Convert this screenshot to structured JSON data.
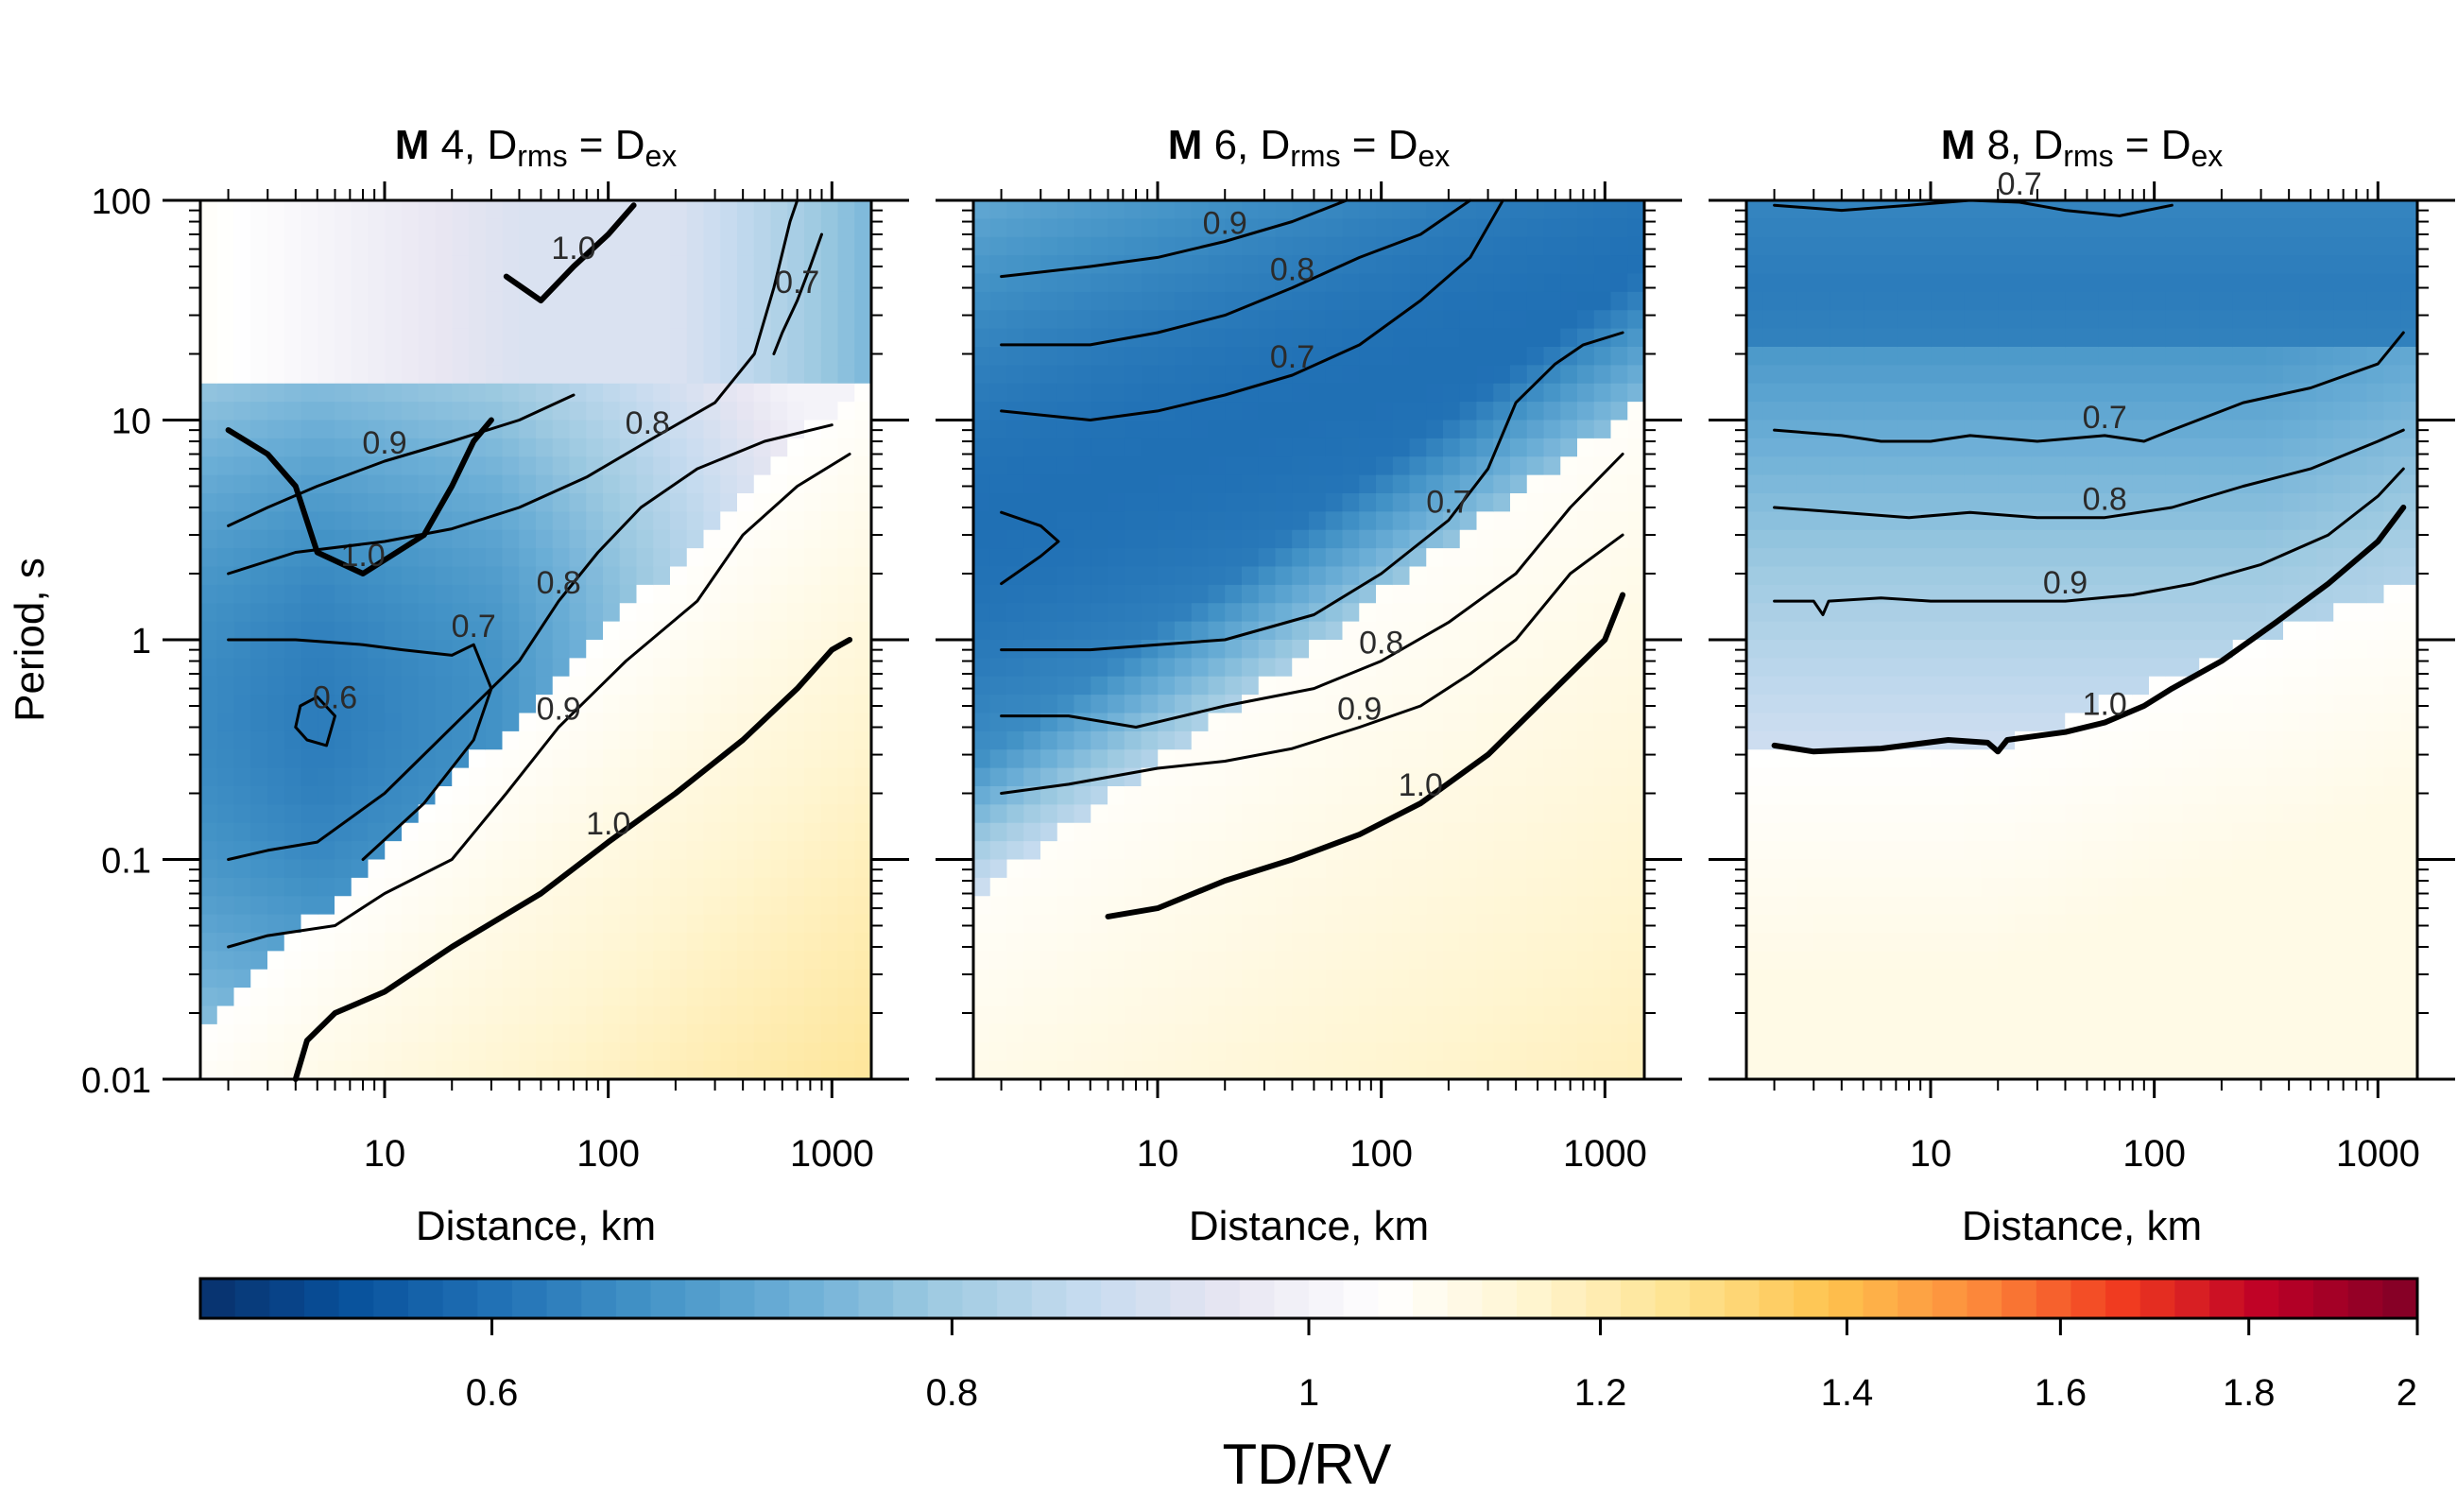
{
  "chart_data": [
    {
      "type": "heatmap",
      "panel": "M4",
      "title": {
        "bold": "M",
        "mag": " 4, D",
        "sub1": "rms",
        "eq": " = D",
        "sub2": "ex"
      },
      "xlabel": "Distance, km",
      "ylabel": "Period, s",
      "x_scale": "log",
      "y_scale": "log",
      "xlim": [
        1.5,
        1500
      ],
      "ylim": [
        0.01,
        100
      ],
      "x_ticks": [
        10,
        100,
        1000
      ],
      "x_tick_labels": [
        "10",
        "100",
        "1000"
      ],
      "y_ticks": [
        0.01,
        0.1,
        1,
        10,
        100
      ],
      "y_tick_labels": [
        "0.01",
        "0.1",
        "1",
        "10",
        "100"
      ],
      "contours": [
        {
          "level": 1.0,
          "label": "1.0",
          "points": [
            [
              2,
              9
            ],
            [
              3,
              7
            ],
            [
              4,
              5
            ],
            [
              5,
              2.5
            ],
            [
              8,
              2
            ],
            [
              15,
              3
            ],
            [
              20,
              5
            ],
            [
              25,
              8
            ],
            [
              30,
              10
            ]
          ]
        },
        {
          "level": 1.0,
          "label": "1.0",
          "points": [
            [
              35,
              45
            ],
            [
              50,
              35
            ],
            [
              70,
              50
            ],
            [
              100,
              70
            ],
            [
              130,
              95
            ]
          ]
        },
        {
          "level": 1.0,
          "label": "1.0",
          "points": [
            [
              4,
              0.01
            ],
            [
              4.5,
              0.015
            ],
            [
              6,
              0.02
            ],
            [
              10,
              0.025
            ],
            [
              20,
              0.04
            ],
            [
              50,
              0.07
            ],
            [
              100,
              0.12
            ],
            [
              200,
              0.2
            ],
            [
              400,
              0.35
            ],
            [
              700,
              0.6
            ],
            [
              1000,
              0.9
            ],
            [
              1200,
              1.0
            ]
          ]
        },
        {
          "level": 0.9,
          "label": "0.9",
          "points": [
            [
              2,
              3.3
            ],
            [
              3,
              4
            ],
            [
              5,
              5
            ],
            [
              10,
              6.5
            ],
            [
              20,
              8
            ],
            [
              40,
              10
            ],
            [
              70,
              13
            ]
          ]
        },
        {
          "level": 0.9,
          "label": "0.9",
          "points": [
            [
              2,
              0.04
            ],
            [
              3,
              0.045
            ],
            [
              6,
              0.05
            ],
            [
              10,
              0.07
            ],
            [
              20,
              0.1
            ],
            [
              35,
              0.2
            ],
            [
              60,
              0.4
            ],
            [
              120,
              0.8
            ],
            [
              250,
              1.5
            ],
            [
              400,
              3
            ],
            [
              700,
              5
            ],
            [
              1200,
              7
            ]
          ]
        },
        {
          "level": 0.8,
          "label": "0.8",
          "points": [
            [
              2,
              2
            ],
            [
              4,
              2.5
            ],
            [
              10,
              2.8
            ],
            [
              20,
              3.2
            ],
            [
              40,
              4
            ],
            [
              80,
              5.5
            ],
            [
              150,
              8
            ],
            [
              300,
              12
            ],
            [
              450,
              20
            ],
            [
              550,
              40
            ],
            [
              650,
              80
            ],
            [
              700,
              100
            ]
          ]
        },
        {
          "level": 0.8,
          "label": "0.8",
          "points": [
            [
              2,
              0.1
            ],
            [
              3,
              0.11
            ],
            [
              5,
              0.12
            ],
            [
              10,
              0.2
            ],
            [
              20,
              0.4
            ],
            [
              40,
              0.8
            ],
            [
              60,
              1.5
            ],
            [
              90,
              2.5
            ],
            [
              140,
              4
            ],
            [
              250,
              6
            ],
            [
              500,
              8
            ],
            [
              1000,
              9.5
            ]
          ]
        },
        {
          "level": 0.7,
          "label": "0.7",
          "points": [
            [
              2,
              1
            ],
            [
              4,
              1
            ],
            [
              8,
              0.95
            ],
            [
              12,
              0.9
            ],
            [
              20,
              0.85
            ],
            [
              25,
              0.95
            ],
            [
              30,
              0.6
            ],
            [
              25,
              0.35
            ],
            [
              15,
              0.18
            ],
            [
              8,
              0.1
            ]
          ]
        },
        {
          "level": 0.7,
          "label": "0.7",
          "points": [
            [
              550,
              20
            ],
            [
              600,
              25
            ],
            [
              700,
              35
            ],
            [
              800,
              50
            ],
            [
              900,
              70
            ]
          ]
        },
        {
          "level": 0.6,
          "label": "0.6",
          "points": [
            [
              4,
              0.4
            ],
            [
              4.5,
              0.35
            ],
            [
              5.5,
              0.33
            ],
            [
              6,
              0.45
            ],
            [
              5,
              0.55
            ],
            [
              4.2,
              0.5
            ],
            [
              4,
              0.4
            ]
          ]
        }
      ]
    },
    {
      "type": "heatmap",
      "panel": "M6",
      "title": {
        "bold": "M",
        "mag": " 6, D",
        "sub1": "rms",
        "eq": " = D",
        "sub2": "ex"
      },
      "xlabel": "Distance, km",
      "ylabel": "",
      "x_scale": "log",
      "y_scale": "log",
      "xlim": [
        1.5,
        1500
      ],
      "ylim": [
        0.01,
        100
      ],
      "x_ticks": [
        10,
        100,
        1000
      ],
      "x_tick_labels": [
        "10",
        "100",
        "1000"
      ],
      "y_ticks": [
        0.01,
        0.1,
        1,
        10,
        100
      ],
      "y_tick_labels": [
        "0.01",
        "0.1",
        "1",
        "10",
        "100"
      ],
      "contours": [
        {
          "level": 1.0,
          "label": "1.0",
          "points": [
            [
              6,
              0.055
            ],
            [
              10,
              0.06
            ],
            [
              20,
              0.08
            ],
            [
              40,
              0.1
            ],
            [
              80,
              0.13
            ],
            [
              150,
              0.18
            ],
            [
              300,
              0.3
            ],
            [
              600,
              0.6
            ],
            [
              1000,
              1.0
            ],
            [
              1200,
              1.6
            ]
          ]
        },
        {
          "level": 0.9,
          "label": "0.9",
          "points": [
            [
              2,
              0.2
            ],
            [
              4,
              0.22
            ],
            [
              10,
              0.26
            ],
            [
              20,
              0.28
            ],
            [
              40,
              0.32
            ],
            [
              80,
              0.4
            ],
            [
              150,
              0.5
            ],
            [
              250,
              0.7
            ],
            [
              400,
              1
            ],
            [
              700,
              2
            ],
            [
              1200,
              3
            ]
          ]
        },
        {
          "level": 0.9,
          "label": "0.9",
          "points": [
            [
              2,
              45
            ],
            [
              5,
              50
            ],
            [
              10,
              55
            ],
            [
              20,
              65
            ],
            [
              40,
              80
            ],
            [
              70,
              100
            ]
          ]
        },
        {
          "level": 0.8,
          "label": "0.8",
          "points": [
            [
              2,
              0.45
            ],
            [
              4,
              0.45
            ],
            [
              8,
              0.4
            ],
            [
              20,
              0.5
            ],
            [
              50,
              0.6
            ],
            [
              100,
              0.8
            ],
            [
              200,
              1.2
            ],
            [
              400,
              2
            ],
            [
              700,
              4
            ],
            [
              1200,
              7
            ]
          ]
        },
        {
          "level": 0.8,
          "label": "0.8",
          "points": [
            [
              2,
              22
            ],
            [
              5,
              22
            ],
            [
              10,
              25
            ],
            [
              20,
              30
            ],
            [
              40,
              40
            ],
            [
              80,
              55
            ],
            [
              150,
              70
            ],
            [
              250,
              100
            ]
          ]
        },
        {
          "level": 0.7,
          "label": "0.7",
          "points": [
            [
              2,
              0.9
            ],
            [
              5,
              0.9
            ],
            [
              10,
              0.95
            ],
            [
              20,
              1
            ],
            [
              50,
              1.3
            ],
            [
              100,
              2
            ],
            [
              200,
              3.5
            ],
            [
              300,
              6
            ],
            [
              400,
              12
            ],
            [
              600,
              18
            ],
            [
              800,
              22
            ],
            [
              1200,
              25
            ]
          ]
        },
        {
          "level": 0.7,
          "label": "0.7",
          "points": [
            [
              2,
              11
            ],
            [
              5,
              10
            ],
            [
              10,
              11
            ],
            [
              20,
              13
            ],
            [
              40,
              16
            ],
            [
              80,
              22
            ],
            [
              150,
              35
            ],
            [
              250,
              55
            ],
            [
              350,
              100
            ]
          ]
        },
        {
          "level": 0.6,
          "label": "",
          "points": [
            [
              2,
              3.8
            ],
            [
              3,
              3.3
            ],
            [
              3.6,
              2.8
            ],
            [
              3,
              2.4
            ],
            [
              2,
              1.8
            ]
          ]
        }
      ]
    },
    {
      "type": "heatmap",
      "panel": "M8",
      "title": {
        "bold": "M",
        "mag": " 8, D",
        "sub1": "rms",
        "eq": " = D",
        "sub2": "ex"
      },
      "xlabel": "Distance, km",
      "ylabel": "",
      "x_scale": "log",
      "y_scale": "log",
      "xlim": [
        1.5,
        1500
      ],
      "ylim": [
        0.01,
        100
      ],
      "x_ticks": [
        10,
        100,
        1000
      ],
      "x_tick_labels": [
        "10",
        "100",
        "1000"
      ],
      "y_ticks": [
        0.01,
        0.1,
        1,
        10,
        100
      ],
      "y_tick_labels": [
        "0.01",
        "0.1",
        "1",
        "10",
        "100"
      ],
      "contours": [
        {
          "level": 1.0,
          "label": "1.0",
          "points": [
            [
              2,
              0.33
            ],
            [
              3,
              0.31
            ],
            [
              6,
              0.32
            ],
            [
              12,
              0.35
            ],
            [
              18,
              0.34
            ],
            [
              20,
              0.31
            ],
            [
              22,
              0.35
            ],
            [
              40,
              0.38
            ],
            [
              60,
              0.42
            ],
            [
              90,
              0.5
            ],
            [
              120,
              0.6
            ],
            [
              200,
              0.8
            ],
            [
              350,
              1.2
            ],
            [
              600,
              1.8
            ],
            [
              1000,
              2.8
            ],
            [
              1300,
              4
            ]
          ]
        },
        {
          "level": 0.9,
          "label": "0.9",
          "points": [
            [
              2,
              1.5
            ],
            [
              3,
              1.5
            ],
            [
              3.3,
              1.3
            ],
            [
              3.5,
              1.5
            ],
            [
              6,
              1.55
            ],
            [
              10,
              1.5
            ],
            [
              20,
              1.5
            ],
            [
              40,
              1.5
            ],
            [
              80,
              1.6
            ],
            [
              150,
              1.8
            ],
            [
              300,
              2.2
            ],
            [
              600,
              3
            ],
            [
              1000,
              4.5
            ],
            [
              1300,
              6
            ]
          ]
        },
        {
          "level": 0.8,
          "label": "0.8",
          "points": [
            [
              2,
              4
            ],
            [
              4,
              3.8
            ],
            [
              8,
              3.6
            ],
            [
              15,
              3.8
            ],
            [
              30,
              3.6
            ],
            [
              60,
              3.6
            ],
            [
              120,
              4
            ],
            [
              250,
              5
            ],
            [
              500,
              6
            ],
            [
              1000,
              8
            ],
            [
              1300,
              9
            ]
          ]
        },
        {
          "level": 0.7,
          "label": "0.7",
          "points": [
            [
              2,
              9
            ],
            [
              4,
              8.5
            ],
            [
              6,
              8
            ],
            [
              10,
              8
            ],
            [
              15,
              8.5
            ],
            [
              30,
              8
            ],
            [
              60,
              8.5
            ],
            [
              90,
              8
            ],
            [
              120,
              9
            ],
            [
              250,
              12
            ],
            [
              500,
              14
            ],
            [
              1000,
              18
            ],
            [
              1300,
              25
            ]
          ]
        },
        {
          "level": 0.7,
          "label": "0.7",
          "points": [
            [
              2,
              95
            ],
            [
              4,
              90
            ],
            [
              8,
              95
            ],
            [
              15,
              100
            ],
            [
              25,
              98
            ],
            [
              40,
              90
            ],
            [
              70,
              85
            ],
            [
              120,
              95
            ]
          ]
        }
      ]
    }
  ],
  "colorbar": {
    "label": "TD/RV",
    "scale": "log",
    "range": [
      0.5,
      2
    ],
    "ticks": [
      0.6,
      0.8,
      1,
      1.2,
      1.4,
      1.6,
      1.8,
      2
    ],
    "tick_labels": [
      "0.6",
      "0.8",
      "1",
      "1.2",
      "1.4",
      "1.6",
      "1.8",
      "2"
    ],
    "colors": [
      "#08306b",
      "#08519c",
      "#2171b5",
      "#4292c6",
      "#6baed6",
      "#9ecae1",
      "#c6dbef",
      "#e8e6f2",
      "#ffffff",
      "#fff5d0",
      "#fee391",
      "#fec44f",
      "#fd8d3c",
      "#f03b20",
      "#bd0026",
      "#800026"
    ]
  }
}
